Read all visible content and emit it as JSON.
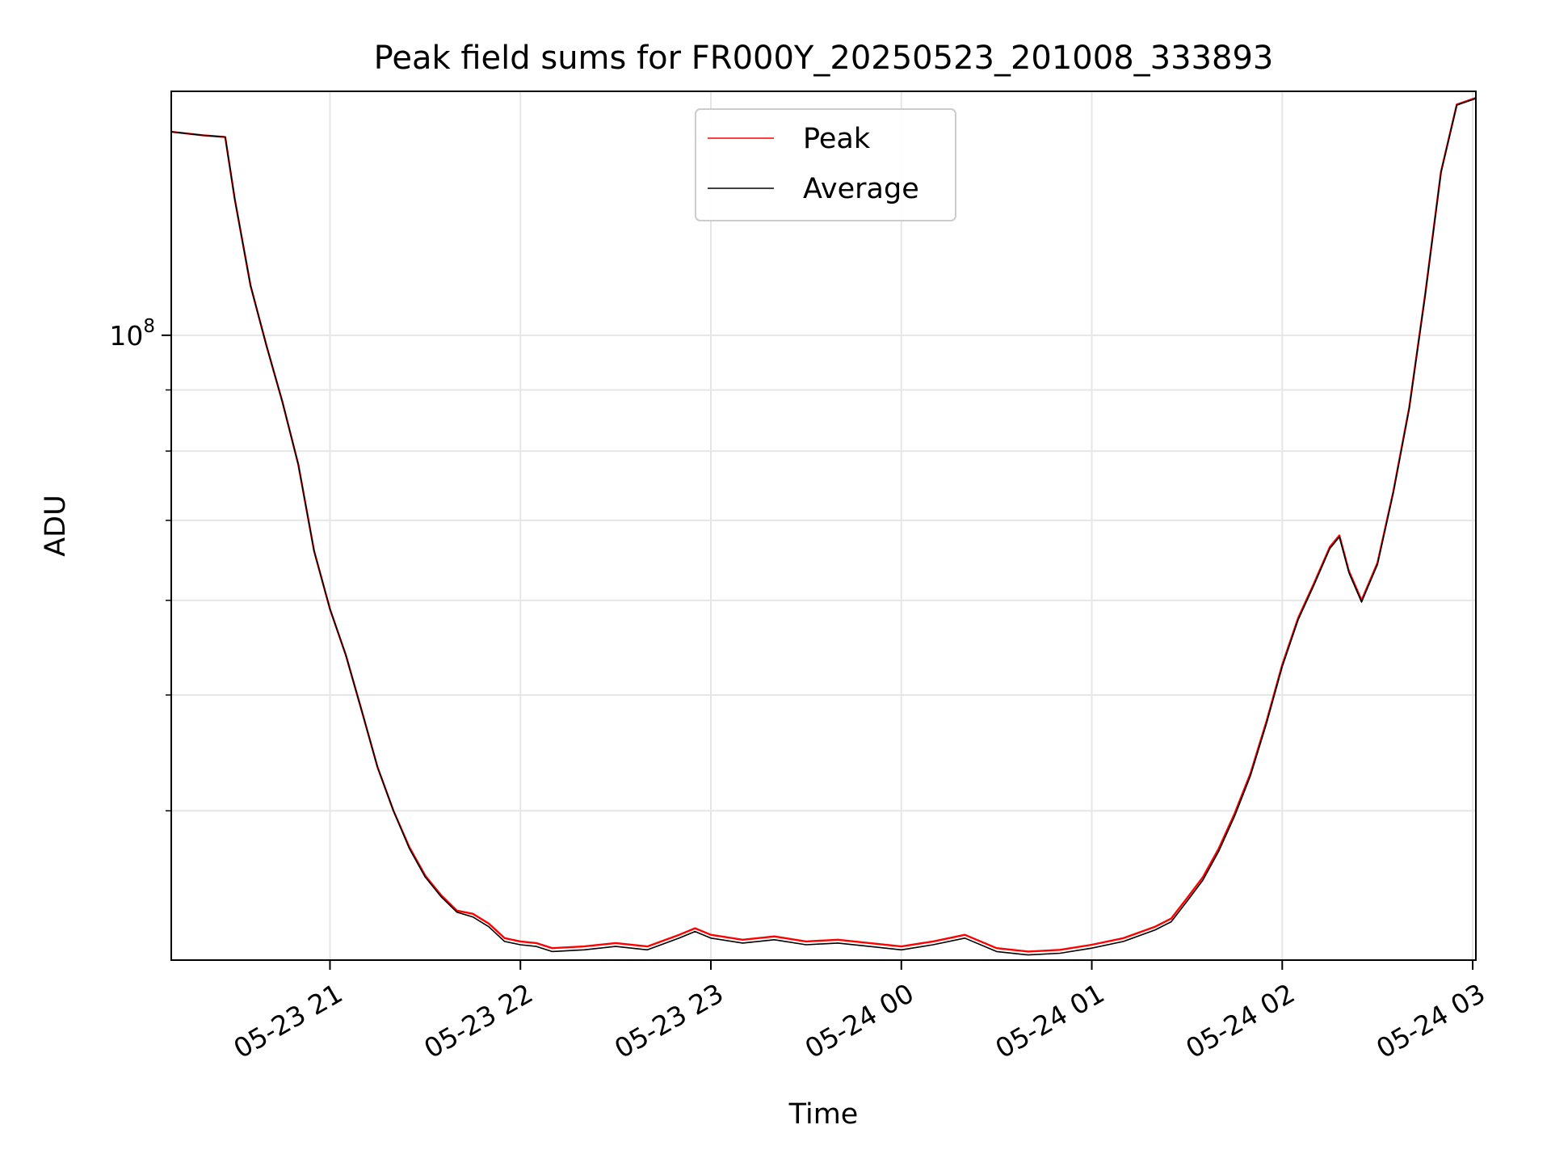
{
  "chart_data": {
    "type": "line",
    "title": "Peak field sums for FR000Y_20250523_201008_333893",
    "xlabel": "Time",
    "ylabel": "ADU",
    "x_axis": {
      "scale": "time",
      "range": [
        "2025-05-23 20:10",
        "2025-05-24 03:01"
      ],
      "ticks": [
        {
          "value": "2025-05-23 21:00",
          "label": "05-23 21"
        },
        {
          "value": "2025-05-23 22:00",
          "label": "05-23 22"
        },
        {
          "value": "2025-05-23 23:00",
          "label": "05-23 23"
        },
        {
          "value": "2025-05-24 00:00",
          "label": "05-24 00"
        },
        {
          "value": "2025-05-24 01:00",
          "label": "05-24 01"
        },
        {
          "value": "2025-05-24 02:00",
          "label": "05-24 02"
        },
        {
          "value": "2025-05-24 03:00",
          "label": "05-24 03"
        }
      ]
    },
    "y_axis": {
      "scale": "log",
      "range": [
        30000000.0,
        160000000.0
      ],
      "major_ticks": [
        {
          "value": 100000000.0,
          "base": "10",
          "exponent": "8"
        }
      ],
      "minor_ticks": [
        40000000.0,
        50000000.0,
        60000000.0,
        70000000.0,
        80000000.0,
        90000000.0,
        200000000.0
      ]
    },
    "grid": true,
    "legend_position": "top-center",
    "series": [
      {
        "name": "Peak",
        "color": "#ff0000",
        "points": [
          [
            "2025-05-23 20:10",
            148000000.0
          ],
          [
            "2025-05-23 20:20",
            147000000.0
          ],
          [
            "2025-05-23 20:27",
            146500000.0
          ],
          [
            "2025-05-23 20:30",
            130000000.0
          ],
          [
            "2025-05-23 20:35",
            110000000.0
          ],
          [
            "2025-05-23 20:40",
            98000000.0
          ],
          [
            "2025-05-23 20:45",
            88000000.0
          ],
          [
            "2025-05-23 20:50",
            78000000.0
          ],
          [
            "2025-05-23 20:55",
            66000000.0
          ],
          [
            "2025-05-23 21:00",
            59000000.0
          ],
          [
            "2025-05-23 21:05",
            54000000.0
          ],
          [
            "2025-05-23 21:10",
            48500000.0
          ],
          [
            "2025-05-23 21:15",
            43500000.0
          ],
          [
            "2025-05-23 21:20",
            40000000.0
          ],
          [
            "2025-05-23 21:25",
            37300000.0
          ],
          [
            "2025-05-23 21:30",
            35300000.0
          ],
          [
            "2025-05-23 21:35",
            34000000.0
          ],
          [
            "2025-05-23 21:40",
            33000000.0
          ],
          [
            "2025-05-23 21:45",
            32800000.0
          ],
          [
            "2025-05-23 21:50",
            32200000.0
          ],
          [
            "2025-05-23 21:55",
            31300000.0
          ],
          [
            "2025-05-23 22:00",
            31100000.0
          ],
          [
            "2025-05-23 22:05",
            31000000.0
          ],
          [
            "2025-05-23 22:10",
            30700000.0
          ],
          [
            "2025-05-23 22:20",
            30800000.0
          ],
          [
            "2025-05-23 22:30",
            31000000.0
          ],
          [
            "2025-05-23 22:40",
            30800000.0
          ],
          [
            "2025-05-23 22:50",
            31500000.0
          ],
          [
            "2025-05-23 22:55",
            31900000.0
          ],
          [
            "2025-05-23 23:00",
            31500000.0
          ],
          [
            "2025-05-23 23:10",
            31200000.0
          ],
          [
            "2025-05-23 23:20",
            31400000.0
          ],
          [
            "2025-05-23 23:30",
            31100000.0
          ],
          [
            "2025-05-23 23:40",
            31200000.0
          ],
          [
            "2025-05-23 23:50",
            31000000.0
          ],
          [
            "2025-05-24 00:00",
            30800000.0
          ],
          [
            "2025-05-24 00:10",
            31100000.0
          ],
          [
            "2025-05-24 00:20",
            31500000.0
          ],
          [
            "2025-05-24 00:30",
            30700000.0
          ],
          [
            "2025-05-24 00:40",
            30500000.0
          ],
          [
            "2025-05-24 00:50",
            30600000.0
          ],
          [
            "2025-05-24 01:00",
            30900000.0
          ],
          [
            "2025-05-24 01:10",
            31300000.0
          ],
          [
            "2025-05-24 01:20",
            32000000.0
          ],
          [
            "2025-05-24 01:25",
            32500000.0
          ],
          [
            "2025-05-24 01:30",
            33800000.0
          ],
          [
            "2025-05-24 01:35",
            35200000.0
          ],
          [
            "2025-05-24 01:40",
            37200000.0
          ],
          [
            "2025-05-24 01:45",
            39800000.0
          ],
          [
            "2025-05-24 01:50",
            43000000.0
          ],
          [
            "2025-05-24 01:55",
            47500000.0
          ],
          [
            "2025-05-24 02:00",
            53000000.0
          ],
          [
            "2025-05-24 02:05",
            58000000.0
          ],
          [
            "2025-05-24 02:10",
            62000000.0
          ],
          [
            "2025-05-24 02:15",
            66500000.0
          ],
          [
            "2025-05-24 02:18",
            68000000.0
          ],
          [
            "2025-05-24 02:21",
            63500000.0
          ],
          [
            "2025-05-24 02:25",
            60000000.0
          ],
          [
            "2025-05-24 02:30",
            64500000.0
          ],
          [
            "2025-05-24 02:35",
            74000000.0
          ],
          [
            "2025-05-24 02:40",
            87000000.0
          ],
          [
            "2025-05-24 02:45",
            108000000.0
          ],
          [
            "2025-05-24 02:50",
            137000000.0
          ],
          [
            "2025-05-24 02:55",
            156000000.0
          ],
          [
            "2025-05-24 03:01",
            158000000.0
          ]
        ]
      },
      {
        "name": "Average",
        "color": "#000000",
        "points": [
          [
            "2025-05-23 20:10",
            148000000.0
          ],
          [
            "2025-05-23 20:20",
            147000000.0
          ],
          [
            "2025-05-23 20:27",
            146500000.0
          ],
          [
            "2025-05-23 20:30",
            130000000.0
          ],
          [
            "2025-05-23 20:35",
            110000000.0
          ],
          [
            "2025-05-23 20:40",
            98000000.0
          ],
          [
            "2025-05-23 20:45",
            88000000.0
          ],
          [
            "2025-05-23 20:50",
            78000000.0
          ],
          [
            "2025-05-23 20:55",
            66000000.0
          ],
          [
            "2025-05-23 21:00",
            59000000.0
          ],
          [
            "2025-05-23 21:05",
            54000000.0
          ],
          [
            "2025-05-23 21:10",
            48500000.0
          ],
          [
            "2025-05-23 21:15",
            43500000.0
          ],
          [
            "2025-05-23 21:20",
            40000000.0
          ],
          [
            "2025-05-23 21:25",
            37200000.0
          ],
          [
            "2025-05-23 21:30",
            35200000.0
          ],
          [
            "2025-05-23 21:35",
            33900000.0
          ],
          [
            "2025-05-23 21:40",
            32900000.0
          ],
          [
            "2025-05-23 21:45",
            32600000.0
          ],
          [
            "2025-05-23 21:50",
            32000000.0
          ],
          [
            "2025-05-23 21:55",
            31100000.0
          ],
          [
            "2025-05-23 22:00",
            30900000.0
          ],
          [
            "2025-05-23 22:05",
            30800000.0
          ],
          [
            "2025-05-23 22:10",
            30500000.0
          ],
          [
            "2025-05-23 22:20",
            30600000.0
          ],
          [
            "2025-05-23 22:30",
            30800000.0
          ],
          [
            "2025-05-23 22:40",
            30600000.0
          ],
          [
            "2025-05-23 22:50",
            31300000.0
          ],
          [
            "2025-05-23 22:55",
            31700000.0
          ],
          [
            "2025-05-23 23:00",
            31300000.0
          ],
          [
            "2025-05-23 23:10",
            31000000.0
          ],
          [
            "2025-05-23 23:20",
            31200000.0
          ],
          [
            "2025-05-23 23:30",
            30900000.0
          ],
          [
            "2025-05-23 23:40",
            31000000.0
          ],
          [
            "2025-05-23 23:50",
            30800000.0
          ],
          [
            "2025-05-24 00:00",
            30600000.0
          ],
          [
            "2025-05-24 00:10",
            30900000.0
          ],
          [
            "2025-05-24 00:20",
            31300000.0
          ],
          [
            "2025-05-24 00:30",
            30500000.0
          ],
          [
            "2025-05-24 00:40",
            30300000.0
          ],
          [
            "2025-05-24 00:50",
            30400000.0
          ],
          [
            "2025-05-24 01:00",
            30700000.0
          ],
          [
            "2025-05-24 01:10",
            31100000.0
          ],
          [
            "2025-05-24 01:20",
            31800000.0
          ],
          [
            "2025-05-24 01:25",
            32300000.0
          ],
          [
            "2025-05-24 01:30",
            33600000.0
          ],
          [
            "2025-05-24 01:35",
            35000000.0
          ],
          [
            "2025-05-24 01:40",
            37000000.0
          ],
          [
            "2025-05-24 01:45",
            39600000.0
          ],
          [
            "2025-05-24 01:50",
            42800000.0
          ],
          [
            "2025-05-24 01:55",
            47300000.0
          ],
          [
            "2025-05-24 02:00",
            52800000.0
          ],
          [
            "2025-05-24 02:05",
            57800000.0
          ],
          [
            "2025-05-24 02:10",
            61800000.0
          ],
          [
            "2025-05-24 02:15",
            66300000.0
          ],
          [
            "2025-05-24 02:18",
            67800000.0
          ],
          [
            "2025-05-24 02:21",
            63300000.0
          ],
          [
            "2025-05-24 02:25",
            59800000.0
          ],
          [
            "2025-05-24 02:30",
            64300000.0
          ],
          [
            "2025-05-24 02:35",
            73800000.0
          ],
          [
            "2025-05-24 02:40",
            86800000.0
          ],
          [
            "2025-05-24 02:45",
            107800000.0
          ],
          [
            "2025-05-24 02:50",
            136800000.0
          ],
          [
            "2025-05-24 02:55",
            155800000.0
          ],
          [
            "2025-05-24 03:01",
            157800000.0
          ]
        ]
      }
    ]
  }
}
